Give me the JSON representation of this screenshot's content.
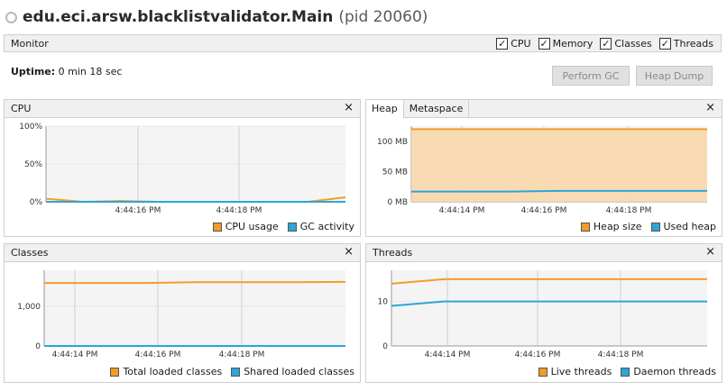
{
  "title": {
    "main": "edu.eci.arsw.blacklistvalidator.Main",
    "pid": "(pid 20060)"
  },
  "monitor": {
    "label": "Monitor",
    "checkboxes": [
      {
        "label": "CPU",
        "checked": true
      },
      {
        "label": "Memory",
        "checked": true
      },
      {
        "label": "Classes",
        "checked": true
      },
      {
        "label": "Threads",
        "checked": true
      }
    ]
  },
  "uptime": {
    "label": "Uptime:",
    "value": "0 min 18 sec"
  },
  "buttons": {
    "perform_gc": "Perform GC",
    "heap_dump": "Heap Dump"
  },
  "colors": {
    "orange": "#f29d27",
    "blue": "#2ca6d6",
    "heap_fill": "#fad8ac",
    "grid": "#d0d0d0"
  },
  "panels": {
    "cpu": {
      "title": "CPU",
      "close": "×",
      "legend": [
        "CPU usage",
        "GC activity"
      ]
    },
    "heap": {
      "tabs": [
        "Heap",
        "Metaspace"
      ],
      "close": "×",
      "legend": [
        "Heap size",
        "Used heap"
      ]
    },
    "classes": {
      "title": "Classes",
      "close": "×",
      "legend": [
        "Total loaded classes",
        "Shared loaded classes"
      ]
    },
    "threads": {
      "title": "Threads",
      "close": "×",
      "legend": [
        "Live threads",
        "Daemon threads"
      ]
    }
  },
  "chart_data": [
    {
      "type": "line",
      "title": "CPU",
      "yticks": [
        "100%",
        "50%",
        "0%"
      ],
      "ylim": [
        0,
        100
      ],
      "xticks": [
        "4:44:16 PM",
        "4:44:18 PM"
      ],
      "series": [
        {
          "name": "CPU usage",
          "values": [
            4,
            0,
            1,
            0,
            0,
            0,
            0,
            0,
            6
          ]
        },
        {
          "name": "GC activity",
          "values": [
            0,
            0,
            0,
            0,
            0,
            0,
            0,
            0,
            0
          ]
        }
      ]
    },
    {
      "type": "area",
      "title": "Heap",
      "yticks": [
        "100 MB",
        "50 MB",
        "0 MB"
      ],
      "ylim": [
        0,
        125
      ],
      "xticks": [
        "4:44:14 PM",
        "4:44:16 PM",
        "4:44:18 PM"
      ],
      "series": [
        {
          "name": "Heap size",
          "values": [
            120,
            120,
            120,
            120,
            120,
            120,
            120
          ]
        },
        {
          "name": "Used heap",
          "values": [
            17,
            17,
            17,
            18,
            18,
            18,
            18
          ]
        }
      ]
    },
    {
      "type": "line",
      "title": "Classes",
      "yticks": [
        "1,000",
        "0"
      ],
      "ylim": [
        0,
        1900
      ],
      "xticks": [
        "4:44:14 PM",
        "4:44:16 PM",
        "4:44:18 PM"
      ],
      "series": [
        {
          "name": "Total loaded classes",
          "values": [
            1580,
            1580,
            1580,
            1600,
            1600,
            1600,
            1610
          ]
        },
        {
          "name": "Shared loaded classes",
          "values": [
            0,
            0,
            0,
            0,
            0,
            0,
            0
          ]
        }
      ]
    },
    {
      "type": "line",
      "title": "Threads",
      "yticks": [
        "10",
        "0"
      ],
      "ylim": [
        0,
        17
      ],
      "xticks": [
        "4:44:14 PM",
        "4:44:16 PM",
        "4:44:18 PM"
      ],
      "series": [
        {
          "name": "Live threads",
          "values": [
            14,
            15,
            15,
            15,
            15,
            15,
            15
          ]
        },
        {
          "name": "Daemon threads",
          "values": [
            9,
            10,
            10,
            10,
            10,
            10,
            10
          ]
        }
      ]
    }
  ]
}
